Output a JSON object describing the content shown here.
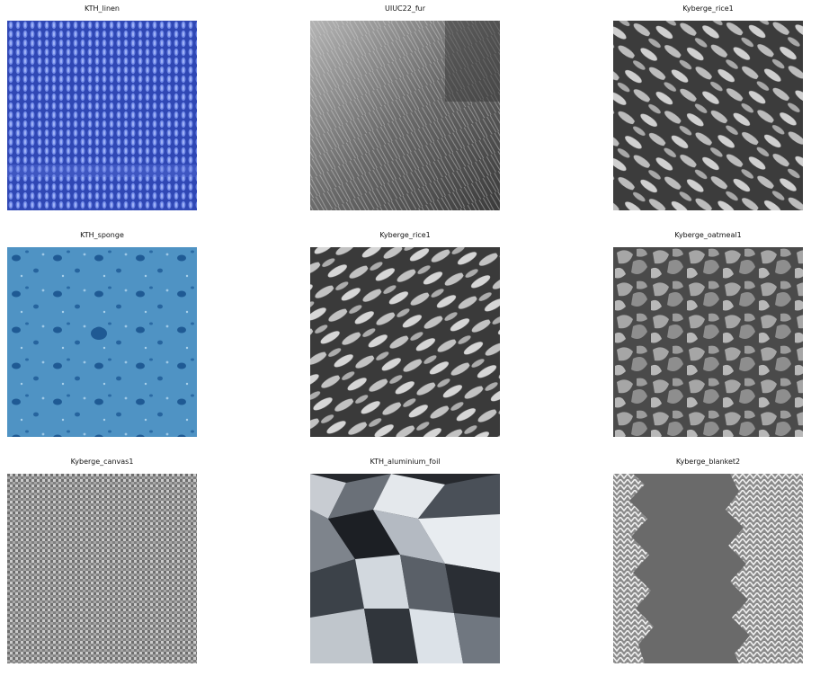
{
  "grid": {
    "rows": 3,
    "columns": 3,
    "images": [
      {
        "title": "KTH_linen",
        "texture": "linen",
        "color": "#3c55c8"
      },
      {
        "title": "UIUC22_fur",
        "texture": "fur",
        "color": "#7a7a7a"
      },
      {
        "title": "Kyberge_rice1",
        "texture": "rice",
        "color": "#9a9a9a"
      },
      {
        "title": "KTH_sponge",
        "texture": "sponge",
        "color": "#4a8fc0"
      },
      {
        "title": "Kyberge_rice1",
        "texture": "rice",
        "color": "#9a9a9a"
      },
      {
        "title": "Kyberge_oatmeal1",
        "texture": "oatmeal",
        "color": "#8a8a8a"
      },
      {
        "title": "Kyberge_canvas1",
        "texture": "canvas",
        "color": "#8c8c8c"
      },
      {
        "title": "KTH_aluminium_foil",
        "texture": "foil",
        "color": "#5a6068"
      },
      {
        "title": "Kyberge_blanket2",
        "texture": "blanket",
        "color": "#6e6e6e"
      }
    ]
  }
}
